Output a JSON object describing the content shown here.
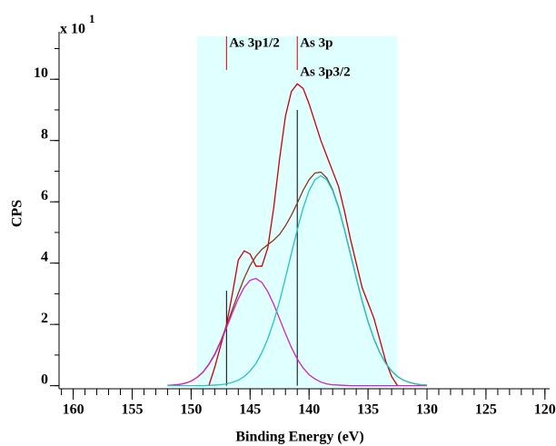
{
  "chart_data": {
    "type": "line",
    "y_scale_label": {
      "text": "x 10",
      "exponent": "1"
    },
    "xlabel": "Binding Energy (eV)",
    "ylabel": "CPS",
    "xlim": [
      161.2,
      119.6
    ],
    "ylim": [
      -0.1,
      11.4
    ],
    "xticks": [
      160,
      155,
      150,
      145,
      140,
      135,
      130,
      125,
      120
    ],
    "yticks": [
      0,
      2,
      4,
      6,
      8,
      10
    ],
    "x_minor_tick_step": 1,
    "y_minor_tick_step": 1,
    "region": {
      "x": [
        149.5,
        132.5
      ],
      "color": "#e0ffff"
    },
    "x": [
      152,
      151.5,
      151,
      150.5,
      150,
      149.5,
      149,
      148.5,
      148,
      147.5,
      147,
      146.5,
      146,
      145.5,
      145,
      144.5,
      144,
      143.5,
      143,
      142.5,
      142,
      141.5,
      141,
      140.5,
      140,
      139.5,
      139,
      138.5,
      138,
      137.5,
      137,
      136.5,
      136,
      135.5,
      135,
      134.5,
      134,
      133.5,
      133,
      132.5,
      132,
      131.5,
      131,
      130.5,
      130
    ],
    "series": [
      {
        "color": "#cc0000",
        "values": [
          null,
          null,
          null,
          null,
          null,
          null,
          null,
          0,
          0.6,
          1.3,
          2.0,
          3.0,
          4.1,
          4.4,
          4.3,
          3.9,
          3.9,
          4.5,
          5.8,
          7.4,
          8.8,
          9.6,
          9.85,
          9.7,
          9.2,
          8.6,
          8.0,
          7.5,
          7.0,
          6.5,
          5.7,
          4.8,
          4.0,
          3.2,
          2.7,
          2.2,
          1.5,
          0.8,
          0.3,
          0,
          null,
          null,
          null,
          null,
          null
        ]
      },
      {
        "color": "#8b3a1a",
        "values": [
          0.01,
          0.02,
          0.04,
          0.08,
          0.15,
          0.27,
          0.44,
          0.7,
          1.03,
          1.45,
          1.95,
          2.49,
          3.02,
          3.51,
          3.92,
          4.23,
          4.45,
          4.6,
          4.75,
          4.94,
          5.22,
          5.56,
          5.96,
          6.38,
          6.72,
          6.94,
          6.97,
          6.78,
          6.39,
          5.82,
          5.1,
          4.31,
          3.52,
          2.76,
          2.09,
          1.53,
          1.08,
          0.73,
          0.48,
          0.3,
          0.18,
          0.11,
          0.06,
          0.03,
          0.02
        ]
      },
      {
        "color": "#cc22cc",
        "values": [
          0.01,
          0.02,
          0.04,
          0.08,
          0.15,
          0.27,
          0.44,
          0.69,
          1.01,
          1.42,
          1.89,
          2.38,
          2.84,
          3.21,
          3.44,
          3.5,
          3.37,
          3.07,
          2.66,
          2.18,
          1.7,
          1.25,
          0.87,
          0.58,
          0.36,
          0.22,
          0.12,
          0.06,
          0.03,
          0.02,
          0.01,
          0,
          0,
          0,
          0,
          0,
          0,
          0,
          0,
          0,
          0,
          0,
          0,
          0,
          0
        ]
      },
      {
        "color": "#22c4c4",
        "values": [
          0,
          0,
          0,
          0,
          0,
          0,
          0,
          0.01,
          0.02,
          0.03,
          0.06,
          0.11,
          0.18,
          0.3,
          0.48,
          0.73,
          1.08,
          1.53,
          2.09,
          2.76,
          3.52,
          4.31,
          5.09,
          5.8,
          6.36,
          6.72,
          6.85,
          6.72,
          6.36,
          5.8,
          5.09,
          4.31,
          3.52,
          2.76,
          2.09,
          1.53,
          1.08,
          0.73,
          0.48,
          0.3,
          0.18,
          0.11,
          0.06,
          0.03,
          0.02
        ]
      }
    ],
    "peaks": [
      {
        "x": 147,
        "height": 3.1
      },
      {
        "x": 141,
        "height": 9.0
      }
    ],
    "annotations": [
      {
        "text": "As 3p1/2",
        "x": 147,
        "row": 0
      },
      {
        "text": "As 3p",
        "x": 141,
        "row": 0
      },
      {
        "text": "As 3p3/2",
        "x": 141,
        "row": 1
      }
    ]
  }
}
